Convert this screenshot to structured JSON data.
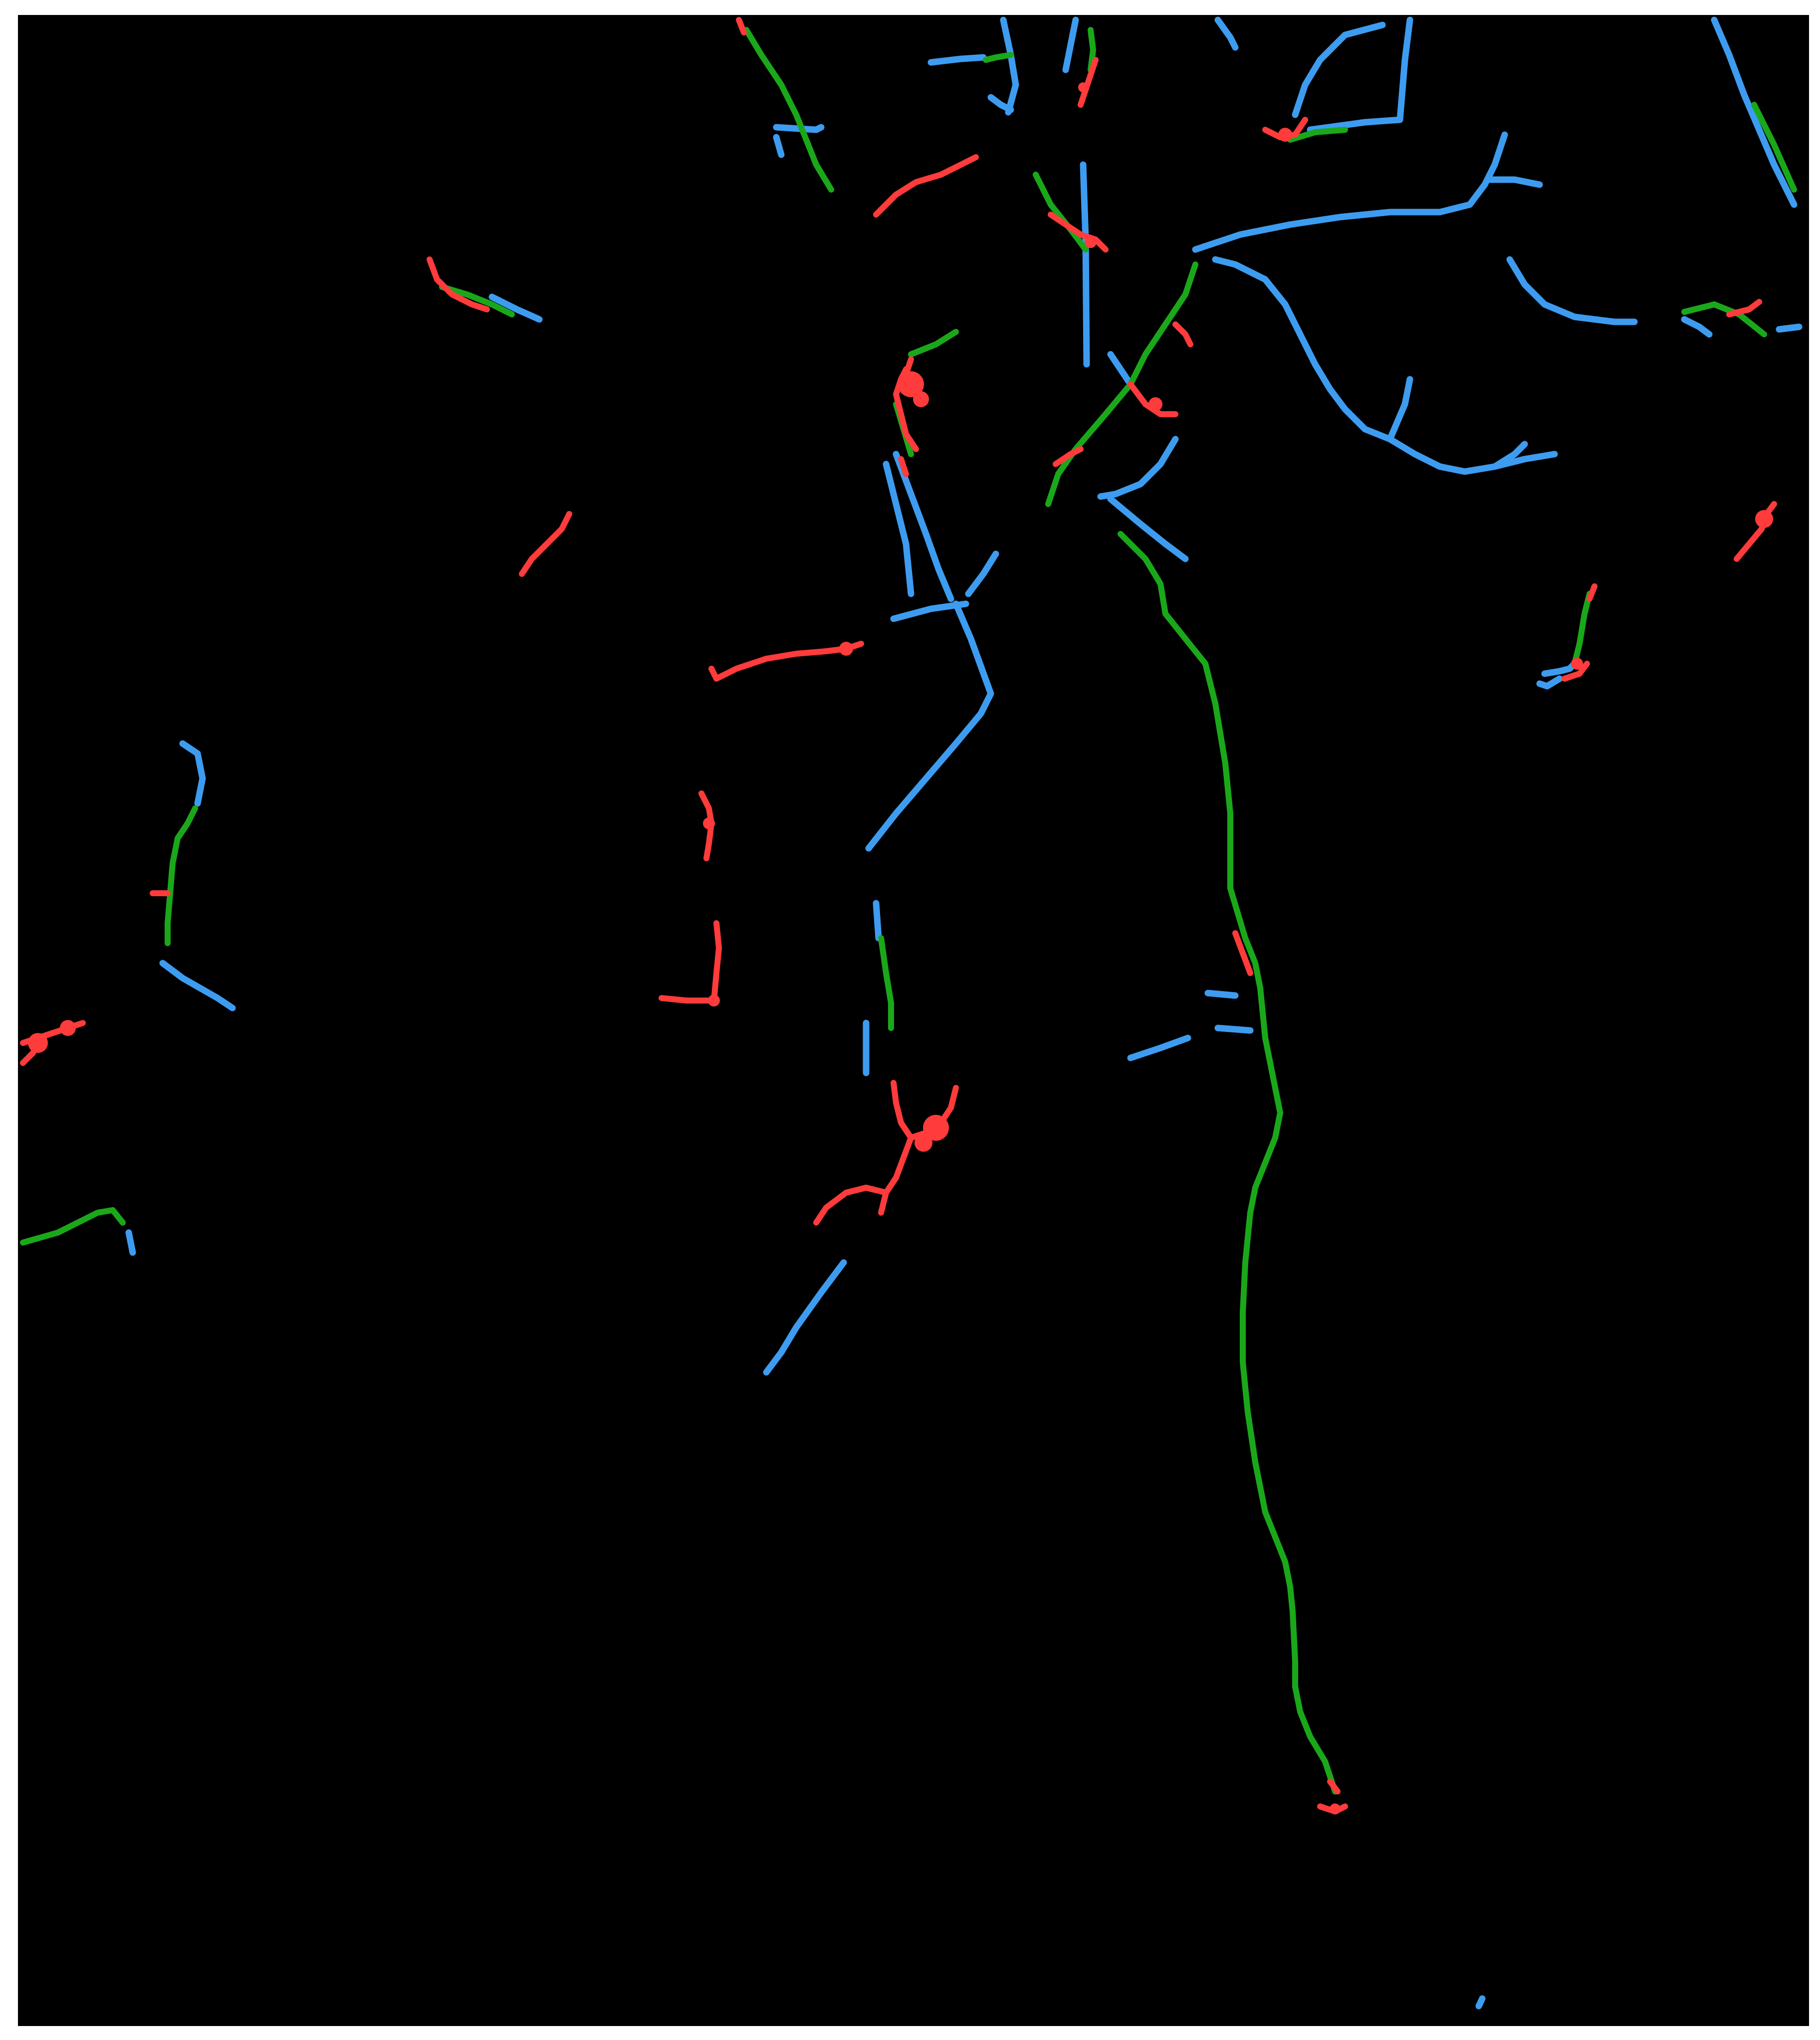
{
  "colors": {
    "background": "#000000",
    "page": "#ffffff",
    "true_positive": "#1aa81a",
    "false_positive": "#ff3b3b",
    "false_negative": "#3d9cf0"
  }
}
